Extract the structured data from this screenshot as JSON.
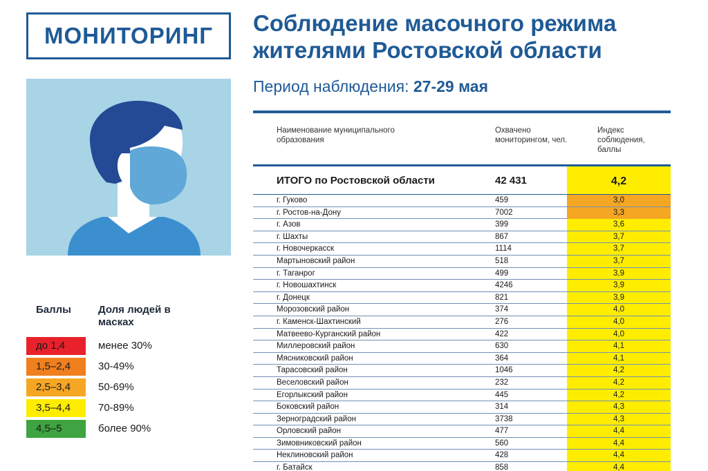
{
  "header": {
    "badge": "МОНИТОРИНГ",
    "title_line1": "Соблюдение масочного режима",
    "title_line2": "жителями Ростовской области",
    "period_label": "Период наблюдения:",
    "period_dates": "27-29 мая"
  },
  "colors": {
    "brand": "#1f5a96",
    "red": "#e8212b",
    "orange": "#f07f1e",
    "amber": "#f5a623",
    "yellow": "#ffed00",
    "green": "#3ea340"
  },
  "legend": {
    "col1": "Баллы",
    "col2": "Доля людей в масках",
    "items": [
      {
        "range": "до 1,4",
        "share": "менее 30%",
        "color": "#e8212b"
      },
      {
        "range": "1,5–2,4",
        "share": "30-49%",
        "color": "#f07f1e"
      },
      {
        "range": "2,5–3,4",
        "share": "50-69%",
        "color": "#f5a623"
      },
      {
        "range": "3,5–4,4",
        "share": "70-89%",
        "color": "#ffed00"
      },
      {
        "range": "4,5–5",
        "share": "более 90%",
        "color": "#3ea340"
      }
    ]
  },
  "table": {
    "col_name": "Наименование муниципального образования",
    "col_count": "Охвачено мониторингом, чел.",
    "col_index": "Индекс соблюдения, баллы",
    "total": {
      "name": "ИТОГО по Ростовской области",
      "count": "42 431",
      "index": "4,2"
    },
    "rows": [
      {
        "name": "г. Гуково",
        "count": "459",
        "index": "3,0",
        "highlight": true
      },
      {
        "name": "г. Ростов-на-Дону",
        "count": "7002",
        "index": "3,3",
        "highlight": true
      },
      {
        "name": "г. Азов",
        "count": "399",
        "index": "3,6"
      },
      {
        "name": "г. Шахты",
        "count": "867",
        "index": "3,7"
      },
      {
        "name": "г. Новочеркасск",
        "count": "1114",
        "index": "3,7"
      },
      {
        "name": "Мартыновский район",
        "count": "518",
        "index": "3,7"
      },
      {
        "name": "г. Таганрог",
        "count": "499",
        "index": "3,9"
      },
      {
        "name": "г. Новошахтинск",
        "count": "4246",
        "index": "3,9"
      },
      {
        "name": "г. Донецк",
        "count": "821",
        "index": "3,9"
      },
      {
        "name": "Морозовский район",
        "count": "374",
        "index": "4,0"
      },
      {
        "name": "г. Каменск-Шахтинский",
        "count": "276",
        "index": "4,0"
      },
      {
        "name": "Матвеево-Курганский район",
        "count": "422",
        "index": "4,0"
      },
      {
        "name": "Миллеровский район",
        "count": "630",
        "index": "4,1"
      },
      {
        "name": "Мясниковский район",
        "count": "364",
        "index": "4,1"
      },
      {
        "name": "Тарасовский район",
        "count": "1046",
        "index": "4,2"
      },
      {
        "name": "Веселовский район",
        "count": "232",
        "index": "4,2"
      },
      {
        "name": "Егорлыкский район",
        "count": "445",
        "index": "4,2"
      },
      {
        "name": "Боковский район",
        "count": "314",
        "index": "4,3"
      },
      {
        "name": "Зерноградский район",
        "count": "3738",
        "index": "4,3"
      },
      {
        "name": "Орловский район",
        "count": "477",
        "index": "4,4"
      },
      {
        "name": "Зимовниковский район",
        "count": "560",
        "index": "4,4"
      },
      {
        "name": "Неклиновский район",
        "count": "428",
        "index": "4,4"
      },
      {
        "name": "г. Батайск",
        "count": "858",
        "index": "4,4"
      }
    ]
  }
}
